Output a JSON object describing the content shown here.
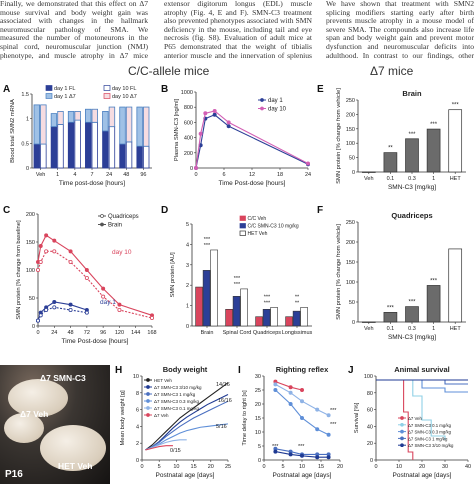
{
  "body_text": {
    "col1": "Finally, we demonstrated that this effect on Δ7 mouse survival and body weight gain was associated with changes in the hallmark neuromuscular pathology of SMA. We measured the number of motoneurons in the spinal cord, neuromuscular junction (NMJ) phenotype, and muscle atrophy in Δ7 mice treated from P3 to P14 with SMN-C3 at different doses. In a dose-dependent manner, SMN-C3 prevented spinal cord motoneuron loss (Fig. 4, A and B), splenius capitis NMJ denervation (Fig. 4, C and D), and",
    "col2": "extensor digitorum longus (EDL) muscle atrophy (Fig. 4, E and F). SMN-C3 treatment also prevented phenotypes associated with SMN deficiency in the mouse, including tail and eye necrosis (fig. S8). Evaluation of adult mice at P65 demonstrated that the weight of tibialis anterior muscle and the innervation of splenius capitis muscle NMJs were now normal, indicating that the effect was preserved into adulthood (fig. S9).",
    "col3": "We have shown that treatment with SMN2 splicing modifiers starting early after birth prevents muscle atrophy in a mouse model of severe SMA. The compounds also increase life span and body weight gain and prevent motor dysfunction and neuromuscular deficits into adulthood. In contrast to our findings, other small-molecule compounds have exhibited only modest effects on life span in Δ7 mice [reviewed in (36)]. Similar to SMN-C3 from P3 were near normal, suggesting that SMN2 splicing modifiers have the"
  },
  "headers": {
    "cc": "C/C-allele mice",
    "d7": "Δ7 mice"
  },
  "panels": {
    "A": {
      "label": "A",
      "ylabel": "Blood total SMN2 mRNA",
      "xlabel": "Time post-dose [hours]",
      "legend": [
        "day 1 FL",
        "day 10 FL",
        "day 1 Δ7",
        "day 10 Δ7"
      ],
      "colors": {
        "fl": "#2c3f97",
        "d7": "#d9455d"
      },
      "ticks_x": [
        "Veh",
        "1",
        "4",
        "7",
        "24",
        "48",
        "96"
      ],
      "ticks_y": [
        "0",
        "0.5",
        "1",
        "1.5"
      ]
    },
    "B": {
      "label": "B",
      "ylabel": "Plasma SMN-C3 [ng/ml]",
      "xlabel": "Time Post-dose [hours]",
      "legend": [
        "day 1",
        "day 10"
      ],
      "ticks_x": [
        "0",
        "6",
        "12",
        "18",
        "24"
      ],
      "ticks_y": [
        "0",
        "200",
        "400",
        "600",
        "800",
        "1000"
      ]
    },
    "C": {
      "label": "C",
      "ylabel": "SMN protein [% change from baseline]",
      "xlabel": "Time Post-dose [hours]",
      "legend": [
        "Quadriceps",
        "Brain"
      ],
      "annot_day10": "day 10",
      "annot_day1": "day 1",
      "ticks_x": [
        "0",
        "24",
        "48",
        "72",
        "96",
        "120",
        "144",
        "168"
      ],
      "ticks_y": [
        "0",
        "50",
        "100",
        "150",
        "200"
      ]
    },
    "D": {
      "label": "D",
      "ylabel": "SMN protein [AU]",
      "legend": [
        "C/C Veh",
        "C/C SMN-C3 10 mg/kg",
        "HET Veh"
      ],
      "groups": [
        "Brain",
        "Spinal Cord",
        "Quadriceps",
        "Longissimus"
      ],
      "ticks_y": [
        "0",
        "1",
        "2",
        "3",
        "4",
        "5"
      ],
      "sig": [
        "***",
        "***",
        "***",
        "***",
        "***",
        "**",
        "***",
        "***",
        "**",
        "**",
        "**",
        "**"
      ]
    },
    "E": {
      "label": "E",
      "title": "Brain",
      "ylabel": "SMN protein [% change from vehicle]",
      "xlabel": "SMN-C3 [mg/kg]",
      "categories": [
        "Veh",
        "0.1",
        "0.3",
        "1",
        "HET"
      ],
      "ticks_y": [
        "0",
        "50",
        "100",
        "150",
        "200",
        "250"
      ],
      "sig": [
        "**",
        "***",
        "***",
        "***"
      ]
    },
    "F": {
      "label": "F",
      "title": "Quadriceps",
      "ylabel": "SMN protein [% change from vehicle]",
      "xlabel": "SMN-C3 [mg/kg]",
      "categories": [
        "Veh",
        "0.1",
        "0.3",
        "1",
        "HET"
      ],
      "ticks_y": [
        "0",
        "50",
        "100",
        "150",
        "200",
        "250"
      ],
      "sig": [
        "***",
        "***",
        "***"
      ]
    },
    "G": {
      "label": "G",
      "labels": [
        "Δ7 SMN-C3",
        "Δ7 Veh",
        "HET Veh",
        "P16"
      ]
    },
    "H": {
      "label": "H",
      "title": "Body weight",
      "ylabel": "Mean body weight [g]",
      "xlabel": "Postnatal age [days]",
      "legend": [
        "HET Veh",
        "Δ7 SMN-C3 3/10 mg/kg",
        "Δ7 SMN-C3 1 mg/kg",
        "Δ7 SMN-C3 0.3 mg/kg",
        "Δ7 SMN-C3 0.1 mg/kg",
        "Δ7 Veh"
      ],
      "annots": [
        "14/16",
        "16/16",
        "5/16",
        "0/15"
      ],
      "ticks_x": [
        "0",
        "5",
        "10",
        "15",
        "20",
        "25"
      ],
      "ticks_y": [
        "0",
        "2",
        "4",
        "6",
        "8",
        "10"
      ]
    },
    "I": {
      "label": "I",
      "title": "Righting reflex",
      "ylabel": "Time delay to right [s]",
      "xlabel": "Postnatal age [days]",
      "ticks_x": [
        "0",
        "5",
        "10",
        "15",
        "20"
      ],
      "ticks_y": [
        "0",
        "5",
        "10",
        "15",
        "20",
        "25",
        "30"
      ],
      "sig": [
        "***",
        "***",
        "***",
        "***"
      ]
    },
    "J": {
      "label": "J",
      "title": "Animal survival",
      "ylabel": "Survival [%]",
      "xlabel": "Postnatal age [days]",
      "legend": [
        "Δ7 Veh",
        "Δ7 SMN-C3 0.1 mg/kg",
        "Δ7 SMN-C3 0.3 mg/kg",
        "Δ7 SMN-C3 1 mg/kg",
        "Δ7 SMN-C3 3/10 mg/kg"
      ],
      "ticks_x": [
        "0",
        "10",
        "20",
        "30",
        "40"
      ],
      "ticks_y": [
        "0",
        "20",
        "40",
        "60",
        "80",
        "100"
      ]
    }
  },
  "chart_data": [
    {
      "panel": "A",
      "type": "bar",
      "categories": [
        "Veh",
        "1",
        "4",
        "7",
        "24",
        "48",
        "96"
      ],
      "series": [
        {
          "name": "day 1 FL",
          "values": [
            0.55,
            0.95,
            1.05,
            1.05,
            0.85,
            0.55,
            0.5
          ]
        },
        {
          "name": "day 10 FL",
          "values": [
            0.55,
            1.0,
            1.1,
            1.05,
            0.95,
            0.6,
            0.5
          ]
        },
        {
          "name": "day 1 Δ7",
          "values": [
            0.9,
            0.3,
            0.25,
            0.3,
            0.45,
            0.85,
            0.9
          ]
        },
        {
          "name": "day 10 Δ7",
          "values": [
            0.9,
            0.3,
            0.2,
            0.3,
            0.45,
            0.8,
            0.9
          ]
        }
      ],
      "ylim": [
        0,
        1.7
      ]
    },
    {
      "panel": "B",
      "type": "line",
      "series": [
        {
          "name": "day 1",
          "x": [
            0,
            1,
            2,
            4,
            7,
            24
          ],
          "y": [
            0,
            300,
            650,
            700,
            550,
            50
          ]
        },
        {
          "name": "day 10",
          "x": [
            0,
            1,
            2,
            4,
            7,
            24
          ],
          "y": [
            0,
            450,
            720,
            750,
            600,
            60
          ]
        }
      ],
      "xlim": [
        0,
        24
      ],
      "ylim": [
        0,
        1000
      ]
    },
    {
      "panel": "C",
      "type": "line",
      "series": [
        {
          "name": "Brain day 10",
          "x": [
            0,
            4,
            12,
            24,
            48,
            72,
            96,
            120,
            168
          ],
          "y": [
            110,
            140,
            160,
            150,
            130,
            95,
            60,
            30,
            10
          ]
        },
        {
          "name": "Quadriceps day 10",
          "x": [
            0,
            4,
            12,
            24,
            48,
            72,
            96,
            120,
            168
          ],
          "y": [
            95,
            110,
            130,
            130,
            110,
            80,
            45,
            20,
            5
          ]
        },
        {
          "name": "Brain day 1",
          "x": [
            0,
            4,
            12,
            24,
            48,
            72
          ],
          "y": [
            0,
            15,
            25,
            35,
            30,
            20
          ]
        },
        {
          "name": "Quadriceps day 1",
          "x": [
            0,
            4,
            12,
            24,
            48,
            72
          ],
          "y": [
            0,
            10,
            20,
            25,
            20,
            15
          ]
        }
      ],
      "xlim": [
        0,
        168
      ],
      "ylim": [
        -10,
        200
      ]
    },
    {
      "panel": "D",
      "type": "bar",
      "categories": [
        "Brain",
        "Spinal Cord",
        "Quadriceps",
        "Longissimus"
      ],
      "series": [
        {
          "name": "C/C Veh",
          "values": [
            2.1,
            0.9,
            0.5,
            0.5
          ]
        },
        {
          "name": "C/C SMN-C3 10 mg/kg",
          "values": [
            3.0,
            1.6,
            0.9,
            0.8
          ]
        },
        {
          "name": "HET Veh",
          "values": [
            4.1,
            2.0,
            1.0,
            1.0
          ]
        }
      ],
      "ylim": [
        0,
        5.5
      ]
    },
    {
      "panel": "E",
      "type": "bar",
      "categories": [
        "Veh",
        "0.1",
        "0.3",
        "1",
        "HET"
      ],
      "values": [
        0,
        70,
        120,
        155,
        225
      ],
      "ylim": [
        0,
        260
      ]
    },
    {
      "panel": "F",
      "type": "bar",
      "categories": [
        "Veh",
        "0.1",
        "0.3",
        "1",
        "HET"
      ],
      "values": [
        0,
        25,
        40,
        95,
        190
      ],
      "ylim": [
        0,
        260
      ]
    },
    {
      "panel": "H",
      "type": "line",
      "series": [
        {
          "name": "HET Veh",
          "x": [
            1,
            3,
            5,
            7,
            9,
            11,
            13,
            15,
            17,
            19,
            21,
            23,
            25
          ],
          "y": [
            1.2,
            1.8,
            2.6,
            3.4,
            4.2,
            5.0,
            5.6,
            6.2,
            6.8,
            7.4,
            8.0,
            8.6,
            9.2
          ]
        },
        {
          "name": "Δ7 SMN-C3 3/10 mg/kg",
          "x": [
            1,
            3,
            5,
            7,
            9,
            11,
            13,
            15,
            17,
            19,
            21,
            23,
            25
          ],
          "y": [
            1.2,
            1.6,
            2.2,
            3.0,
            3.8,
            4.5,
            5.1,
            5.6,
            6.1,
            6.6,
            7.0,
            7.4,
            7.8
          ]
        },
        {
          "name": "Δ7 SMN-C3 1 mg/kg",
          "x": [
            1,
            3,
            5,
            7,
            9,
            11,
            13,
            15,
            17,
            19,
            21,
            23,
            25
          ],
          "y": [
            1.2,
            1.6,
            2.1,
            2.8,
            3.4,
            4.0,
            4.5,
            5.0,
            5.4,
            5.8,
            6.2,
            6.6,
            7.0
          ]
        },
        {
          "name": "Δ7 SMN-C3 0.3 mg/kg",
          "x": [
            1,
            3,
            5,
            7,
            9,
            11,
            13,
            15,
            17,
            19,
            21,
            23,
            25
          ],
          "y": [
            1.2,
            1.5,
            1.9,
            2.4,
            2.8,
            3.2,
            3.5,
            3.7,
            3.9,
            4.0,
            4.1,
            4.2,
            4.3
          ]
        },
        {
          "name": "Δ7 SMN-C3 0.1 mg/kg",
          "x": [
            1,
            3,
            5,
            7,
            9,
            11,
            13
          ],
          "y": [
            1.2,
            1.5,
            1.8,
            2.1,
            2.3,
            2.4,
            2.4
          ]
        },
        {
          "name": "Δ7 Veh",
          "x": [
            1,
            3,
            5,
            7,
            9
          ],
          "y": [
            1.2,
            1.4,
            1.6,
            1.7,
            1.7
          ]
        }
      ],
      "xlim": [
        0,
        25
      ],
      "ylim": [
        0,
        10
      ]
    },
    {
      "panel": "I",
      "type": "line",
      "series": [
        {
          "name": "Δ7 Veh",
          "x": [
            3,
            7,
            10
          ],
          "y": [
            28,
            26,
            25
          ]
        },
        {
          "name": "Δ7 SMN-C3 0.1 mg/kg",
          "x": [
            3,
            7,
            10,
            14,
            17
          ],
          "y": [
            27,
            24,
            21,
            18,
            16
          ]
        },
        {
          "name": "Δ7 SMN-C3 0.3 mg/kg",
          "x": [
            3,
            7,
            10,
            14,
            17
          ],
          "y": [
            25,
            20,
            15,
            11,
            9
          ]
        },
        {
          "name": "Δ7 SMN-C3 1 mg/kg",
          "x": [
            3,
            7,
            10,
            14,
            17
          ],
          "y": [
            4,
            3,
            2,
            2,
            2
          ]
        },
        {
          "name": "Δ7 SMN-C3 3/10 mg/kg",
          "x": [
            3,
            7,
            10,
            14,
            17
          ],
          "y": [
            3,
            2,
            1.5,
            1,
            1
          ]
        }
      ],
      "xlim": [
        0,
        20
      ],
      "ylim": [
        0,
        30
      ]
    },
    {
      "panel": "J",
      "type": "line",
      "series": [
        {
          "name": "Δ7 Veh",
          "x": [
            0,
            10,
            12,
            14,
            16
          ],
          "y": [
            100,
            100,
            60,
            10,
            0
          ]
        },
        {
          "name": "Δ7 SMN-C3 0.1 mg/kg",
          "x": [
            0,
            12,
            16,
            20,
            24,
            30
          ],
          "y": [
            100,
            100,
            80,
            50,
            30,
            25
          ]
        },
        {
          "name": "Δ7 SMN-C3 0.3 mg/kg",
          "x": [
            0,
            14,
            20,
            30,
            40
          ],
          "y": [
            100,
            100,
            90,
            85,
            85
          ]
        },
        {
          "name": "Δ7 SMN-C3 1 mg/kg",
          "x": [
            0,
            20,
            30,
            40
          ],
          "y": [
            100,
            100,
            95,
            95
          ]
        },
        {
          "name": "Δ7 SMN-C3 3/10 mg/kg",
          "x": [
            0,
            40
          ],
          "y": [
            100,
            100
          ]
        }
      ],
      "xlim": [
        0,
        40
      ],
      "ylim": [
        0,
        105
      ]
    }
  ]
}
